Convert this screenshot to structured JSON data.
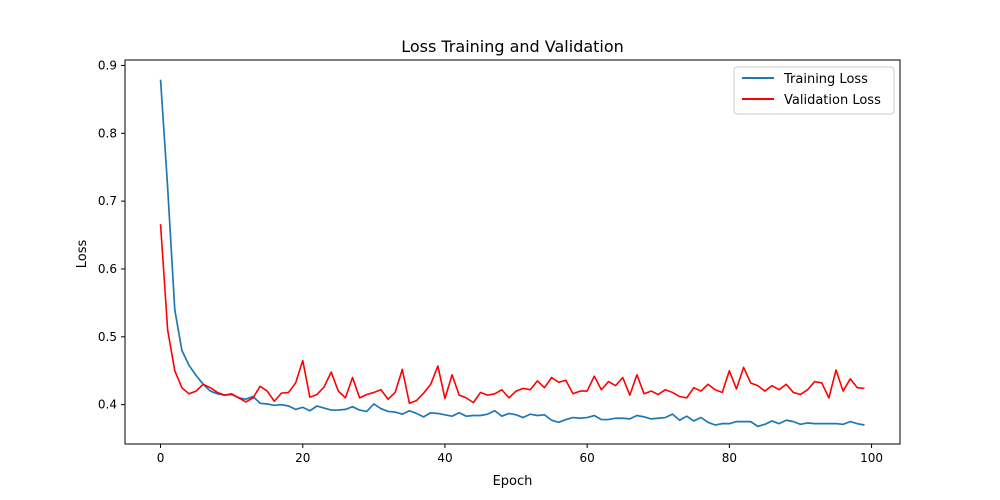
{
  "chart_data": {
    "type": "line",
    "title": "Loss Training and Validation",
    "xlabel": "Epoch",
    "ylabel": "Loss",
    "xlim": [
      -5,
      104
    ],
    "ylim": [
      0.342,
      0.908
    ],
    "xticks": [
      0,
      20,
      40,
      60,
      80,
      100
    ],
    "yticks": [
      0.4,
      0.5,
      0.6,
      0.7,
      0.8,
      0.9
    ],
    "grid": false,
    "legend_position": "top-right",
    "series": [
      {
        "name": "Training Loss",
        "color": "#1f77b4",
        "values": [
          0.879,
          0.72,
          0.54,
          0.48,
          0.458,
          0.443,
          0.43,
          0.42,
          0.416,
          0.414,
          0.415,
          0.41,
          0.408,
          0.412,
          0.402,
          0.401,
          0.399,
          0.4,
          0.398,
          0.393,
          0.396,
          0.391,
          0.398,
          0.395,
          0.392,
          0.392,
          0.393,
          0.397,
          0.392,
          0.39,
          0.401,
          0.394,
          0.39,
          0.389,
          0.386,
          0.391,
          0.387,
          0.382,
          0.388,
          0.387,
          0.385,
          0.383,
          0.388,
          0.383,
          0.384,
          0.384,
          0.386,
          0.391,
          0.383,
          0.387,
          0.385,
          0.381,
          0.386,
          0.384,
          0.385,
          0.377,
          0.374,
          0.378,
          0.381,
          0.38,
          0.381,
          0.384,
          0.378,
          0.378,
          0.38,
          0.38,
          0.379,
          0.384,
          0.382,
          0.379,
          0.38,
          0.381,
          0.386,
          0.377,
          0.383,
          0.376,
          0.381,
          0.374,
          0.37,
          0.372,
          0.372,
          0.375,
          0.375,
          0.375,
          0.368,
          0.371,
          0.376,
          0.372,
          0.377,
          0.375,
          0.371,
          0.373,
          0.372,
          0.372,
          0.372,
          0.372,
          0.371,
          0.375,
          0.372,
          0.37
        ]
      },
      {
        "name": "Validation Loss",
        "color": "#ff0000",
        "values": [
          0.666,
          0.51,
          0.45,
          0.425,
          0.416,
          0.42,
          0.43,
          0.425,
          0.418,
          0.414,
          0.416,
          0.41,
          0.404,
          0.41,
          0.427,
          0.42,
          0.405,
          0.417,
          0.418,
          0.432,
          0.465,
          0.411,
          0.415,
          0.426,
          0.448,
          0.42,
          0.41,
          0.44,
          0.41,
          0.415,
          0.418,
          0.422,
          0.408,
          0.418,
          0.452,
          0.402,
          0.406,
          0.417,
          0.43,
          0.457,
          0.409,
          0.444,
          0.414,
          0.41,
          0.403,
          0.418,
          0.414,
          0.416,
          0.422,
          0.41,
          0.42,
          0.424,
          0.422,
          0.435,
          0.425,
          0.44,
          0.433,
          0.436,
          0.416,
          0.42,
          0.42,
          0.442,
          0.422,
          0.434,
          0.428,
          0.44,
          0.414,
          0.444,
          0.416,
          0.42,
          0.415,
          0.422,
          0.418,
          0.412,
          0.41,
          0.425,
          0.42,
          0.43,
          0.422,
          0.418,
          0.45,
          0.423,
          0.455,
          0.432,
          0.428,
          0.42,
          0.428,
          0.422,
          0.43,
          0.418,
          0.415,
          0.422,
          0.434,
          0.432,
          0.41,
          0.451,
          0.42,
          0.438,
          0.425,
          0.424
        ]
      }
    ]
  }
}
